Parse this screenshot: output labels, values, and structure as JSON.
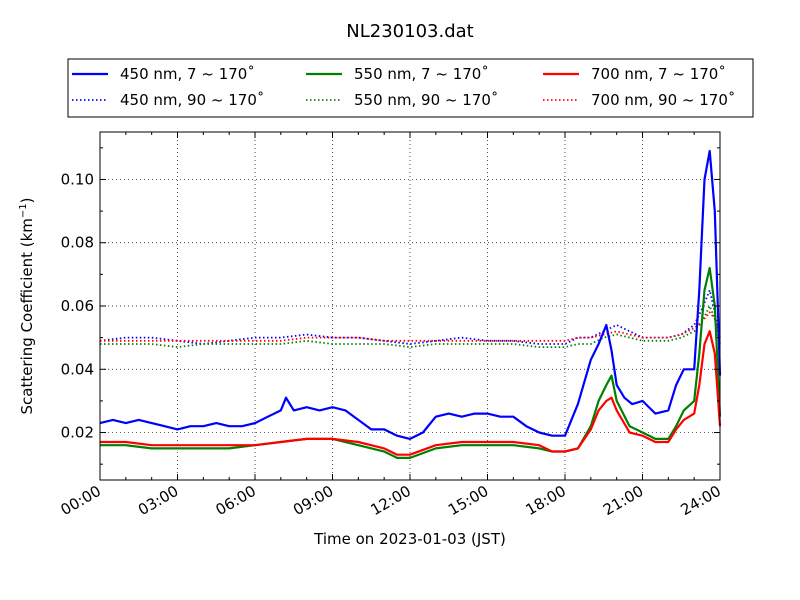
{
  "chart_data": {
    "type": "line",
    "title": "NL230103.dat",
    "xlabel": "Time on 2023-01-03 (JST)",
    "ylabel": "Scattering Coefficient (km",
    "ylabel_exp": "−1",
    "ylabel_close": ")",
    "xlim": [
      0,
      24
    ],
    "ylim": [
      0.005,
      0.115
    ],
    "x_ticks": [
      {
        "value": 0,
        "label": "00:00"
      },
      {
        "value": 3,
        "label": "03:00"
      },
      {
        "value": 6,
        "label": "06:00"
      },
      {
        "value": 9,
        "label": "09:00"
      },
      {
        "value": 12,
        "label": "12:00"
      },
      {
        "value": 15,
        "label": "15:00"
      },
      {
        "value": 18,
        "label": "18:00"
      },
      {
        "value": 21,
        "label": "21:00"
      },
      {
        "value": 24,
        "label": "24:00"
      }
    ],
    "y_ticks": [
      {
        "value": 0.02,
        "label": "0.02"
      },
      {
        "value": 0.04,
        "label": "0.04"
      },
      {
        "value": 0.06,
        "label": "0.06"
      },
      {
        "value": 0.08,
        "label": "0.08"
      },
      {
        "value": 0.1,
        "label": "0.10"
      }
    ],
    "grid": true,
    "legend_position": "top",
    "x_unit": "hours",
    "series": [
      {
        "name": "450 nm, 7 ~ 170˚",
        "color": "#0000ff",
        "style": "solid",
        "x": [
          0,
          0.5,
          1,
          1.5,
          2,
          2.5,
          3,
          3.5,
          4,
          4.5,
          5,
          5.5,
          6,
          6.5,
          7,
          7.2,
          7.5,
          8,
          8.5,
          9,
          9.5,
          10,
          10.5,
          11,
          11.5,
          12,
          12.5,
          13,
          13.5,
          14,
          14.5,
          15,
          15.5,
          16,
          16.5,
          17,
          17.5,
          18,
          18.5,
          19,
          19.3,
          19.6,
          19.8,
          20,
          20.3,
          20.6,
          21,
          21.5,
          22,
          22.3,
          22.6,
          23,
          23.2,
          23.4,
          23.6,
          23.8,
          24
        ],
        "y": [
          0.023,
          0.024,
          0.023,
          0.024,
          0.023,
          0.022,
          0.021,
          0.022,
          0.022,
          0.023,
          0.022,
          0.022,
          0.023,
          0.025,
          0.027,
          0.031,
          0.027,
          0.028,
          0.027,
          0.028,
          0.027,
          0.024,
          0.021,
          0.021,
          0.019,
          0.018,
          0.02,
          0.025,
          0.026,
          0.025,
          0.026,
          0.026,
          0.025,
          0.025,
          0.022,
          0.02,
          0.019,
          0.019,
          0.029,
          0.043,
          0.048,
          0.054,
          0.046,
          0.035,
          0.031,
          0.029,
          0.03,
          0.026,
          0.027,
          0.035,
          0.04,
          0.04,
          0.065,
          0.1,
          0.109,
          0.09,
          0.038
        ]
      },
      {
        "name": "450 nm, 90 ~ 170˚",
        "color": "#0000ff",
        "style": "dotted",
        "x": [
          0,
          1,
          2,
          3,
          4,
          5,
          6,
          7,
          8,
          9,
          10,
          11,
          12,
          13,
          14,
          15,
          16,
          17,
          18,
          18.5,
          19,
          19.5,
          20,
          20.5,
          21,
          22,
          22.5,
          23,
          23.3,
          23.6,
          23.8,
          24
        ],
        "y": [
          0.049,
          0.05,
          0.05,
          0.049,
          0.048,
          0.049,
          0.05,
          0.05,
          0.051,
          0.05,
          0.05,
          0.049,
          0.048,
          0.049,
          0.05,
          0.049,
          0.049,
          0.048,
          0.048,
          0.05,
          0.05,
          0.052,
          0.054,
          0.052,
          0.05,
          0.05,
          0.051,
          0.054,
          0.059,
          0.065,
          0.058,
          0.05
        ]
      },
      {
        "name": "550 nm, 7 ~ 170˚",
        "color": "#008000",
        "style": "solid",
        "x": [
          0,
          1,
          2,
          3,
          4,
          5,
          6,
          7,
          8,
          9,
          10,
          11,
          11.5,
          12,
          13,
          14,
          15,
          16,
          17,
          17.5,
          18,
          18.5,
          19,
          19.3,
          19.6,
          19.8,
          20,
          20.5,
          21,
          21.5,
          22,
          22.3,
          22.6,
          23,
          23.2,
          23.4,
          23.6,
          23.8,
          24
        ],
        "y": [
          0.016,
          0.016,
          0.015,
          0.015,
          0.015,
          0.015,
          0.016,
          0.017,
          0.018,
          0.018,
          0.016,
          0.014,
          0.012,
          0.012,
          0.015,
          0.016,
          0.016,
          0.016,
          0.015,
          0.014,
          0.014,
          0.015,
          0.022,
          0.03,
          0.035,
          0.038,
          0.03,
          0.022,
          0.02,
          0.018,
          0.018,
          0.022,
          0.027,
          0.03,
          0.045,
          0.065,
          0.072,
          0.06,
          0.025
        ]
      },
      {
        "name": "550 nm, 90 ~ 170˚",
        "color": "#008000",
        "style": "dotted",
        "x": [
          0,
          1,
          2,
          3,
          4,
          5,
          6,
          7,
          8,
          9,
          10,
          11,
          12,
          13,
          14,
          15,
          16,
          17,
          18,
          18.5,
          19,
          19.5,
          20,
          20.5,
          21,
          22,
          22.5,
          23,
          23.3,
          23.6,
          23.8,
          24
        ],
        "y": [
          0.048,
          0.048,
          0.048,
          0.047,
          0.048,
          0.048,
          0.048,
          0.048,
          0.049,
          0.048,
          0.048,
          0.048,
          0.047,
          0.048,
          0.048,
          0.048,
          0.048,
          0.047,
          0.047,
          0.048,
          0.048,
          0.05,
          0.051,
          0.05,
          0.049,
          0.049,
          0.05,
          0.052,
          0.055,
          0.06,
          0.056,
          0.048
        ]
      },
      {
        "name": "700 nm, 7 ~ 170˚",
        "color": "#ff0000",
        "style": "solid",
        "x": [
          0,
          1,
          2,
          3,
          4,
          5,
          6,
          7,
          8,
          9,
          10,
          11,
          11.5,
          12,
          13,
          14,
          15,
          16,
          17,
          17.5,
          18,
          18.5,
          19,
          19.3,
          19.6,
          19.8,
          20,
          20.5,
          21,
          21.5,
          22,
          22.3,
          22.6,
          23,
          23.2,
          23.4,
          23.6,
          23.8,
          24
        ],
        "y": [
          0.017,
          0.017,
          0.016,
          0.016,
          0.016,
          0.016,
          0.016,
          0.017,
          0.018,
          0.018,
          0.017,
          0.015,
          0.013,
          0.013,
          0.016,
          0.017,
          0.017,
          0.017,
          0.016,
          0.014,
          0.014,
          0.015,
          0.021,
          0.027,
          0.03,
          0.031,
          0.027,
          0.02,
          0.019,
          0.017,
          0.017,
          0.021,
          0.024,
          0.026,
          0.035,
          0.048,
          0.052,
          0.045,
          0.022
        ]
      },
      {
        "name": "700 nm, 90 ~ 170˚",
        "color": "#ff0000",
        "style": "dotted",
        "x": [
          0,
          1,
          2,
          3,
          4,
          5,
          6,
          7,
          8,
          9,
          10,
          11,
          12,
          13,
          14,
          15,
          16,
          17,
          18,
          18.5,
          19,
          19.5,
          20,
          20.5,
          21,
          22,
          22.5,
          23,
          23.3,
          23.6,
          23.8,
          24
        ],
        "y": [
          0.049,
          0.049,
          0.049,
          0.049,
          0.049,
          0.049,
          0.049,
          0.049,
          0.05,
          0.05,
          0.05,
          0.049,
          0.049,
          0.049,
          0.049,
          0.049,
          0.049,
          0.049,
          0.049,
          0.05,
          0.05,
          0.051,
          0.052,
          0.051,
          0.05,
          0.05,
          0.051,
          0.053,
          0.055,
          0.058,
          0.056,
          0.049
        ]
      }
    ]
  }
}
